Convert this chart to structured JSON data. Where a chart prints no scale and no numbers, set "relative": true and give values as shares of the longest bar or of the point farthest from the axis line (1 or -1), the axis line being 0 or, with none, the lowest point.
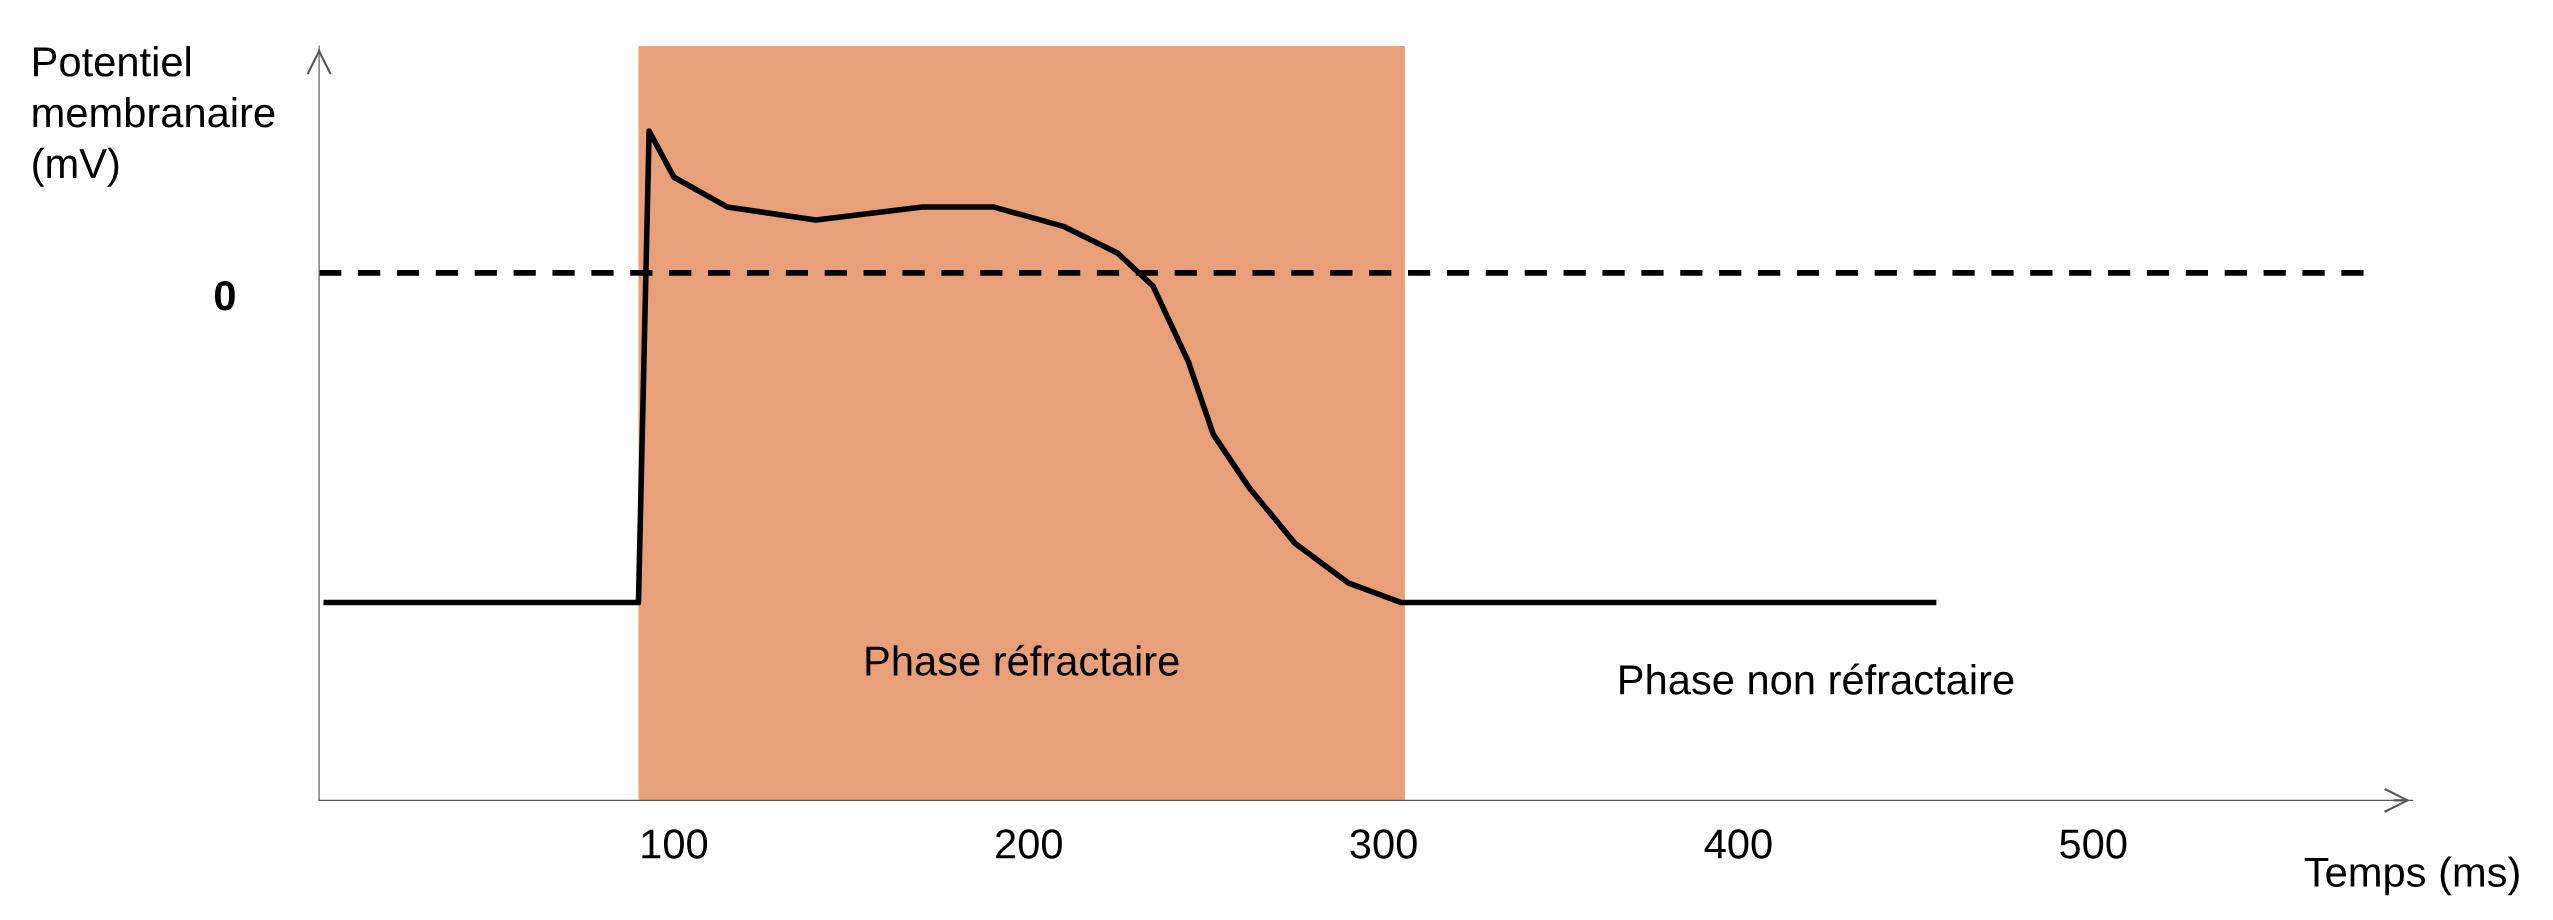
{
  "chart_data": {
    "type": "line",
    "relative": true,
    "ylabel": "Potentiel\nmembranaire\n(mV)",
    "xlabel": "Temps (ms)",
    "x": [
      2,
      90,
      90,
      93,
      100,
      115,
      140,
      170,
      190,
      210,
      225,
      235,
      245,
      252,
      262,
      275,
      290,
      305,
      455
    ],
    "series": [
      {
        "color": "#000000",
        "values": [
          -1.0,
          -1.0,
          -1.0,
          0.43,
          0.29,
          0.2,
          0.16,
          0.2,
          0.2,
          0.14,
          0.06,
          -0.04,
          -0.27,
          -0.49,
          -0.65,
          -0.82,
          -0.94,
          -1.0,
          -1.0
        ]
      }
    ],
    "xlim": [
      0,
      590
    ],
    "xticks": [
      100,
      200,
      300,
      400,
      500
    ],
    "ref_lines": [
      {
        "axis": "y",
        "value": 0,
        "label": "0",
        "line_style": "dashed",
        "color": "#000000"
      }
    ],
    "bands": [
      {
        "axis": "x",
        "from": 90,
        "to": 306,
        "label": "Phase réfractaire",
        "color": "#e8a07a"
      }
    ],
    "annotations": [
      "Phase non réfractaire"
    ],
    "grid": false,
    "legend": false,
    "marker": "none",
    "line_style": "solid"
  }
}
